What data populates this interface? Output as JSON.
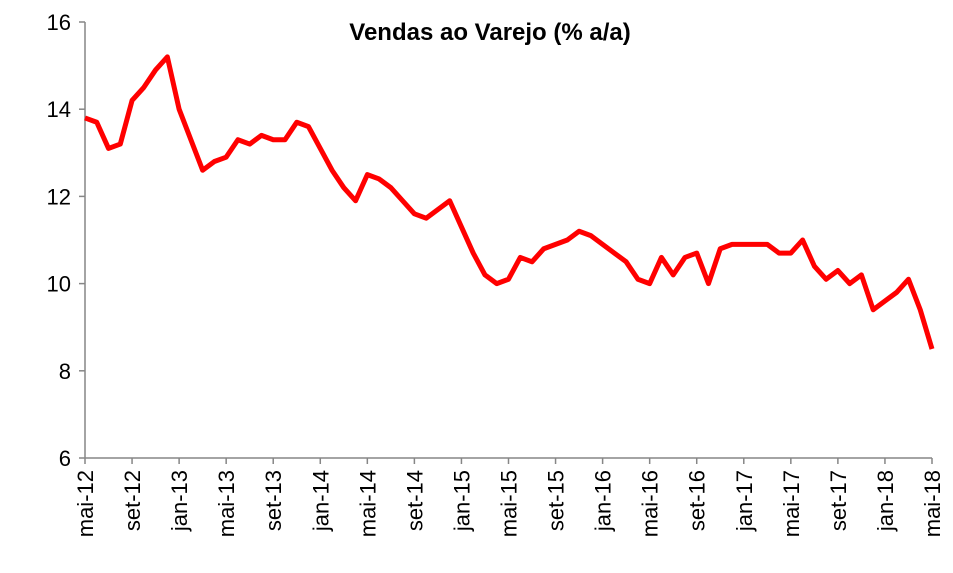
{
  "chart_data": {
    "type": "line",
    "title": "Vendas ao Varejo (% a/a)",
    "categories": [
      "mai-12",
      null,
      null,
      null,
      "set-12",
      null,
      null,
      null,
      "jan-13",
      null,
      null,
      null,
      "mai-13",
      null,
      null,
      null,
      "set-13",
      null,
      null,
      null,
      "jan-14",
      null,
      null,
      null,
      "mai-14",
      null,
      null,
      null,
      "set-14",
      null,
      null,
      null,
      "jan-15",
      null,
      null,
      null,
      "mai-15",
      null,
      null,
      null,
      "set-15",
      null,
      null,
      null,
      "jan-16",
      null,
      null,
      null,
      "mai-16",
      null,
      null,
      null,
      "set-16",
      null,
      null,
      null,
      "jan-17",
      null,
      null,
      null,
      "mai-17",
      null,
      null,
      null,
      "set-17",
      null,
      null,
      null,
      "jan-18",
      null,
      null,
      null,
      "mai-18"
    ],
    "series": [
      {
        "name": "Vendas ao Varejo",
        "color": "#ff0000",
        "values": [
          13.8,
          13.7,
          13.1,
          13.2,
          14.2,
          14.5,
          14.9,
          15.2,
          14.0,
          13.3,
          12.6,
          12.8,
          12.9,
          13.3,
          13.2,
          13.4,
          13.3,
          13.3,
          13.7,
          13.6,
          13.1,
          12.6,
          12.2,
          11.9,
          12.5,
          12.4,
          12.2,
          11.9,
          11.6,
          11.5,
          11.7,
          11.9,
          11.3,
          10.7,
          10.2,
          10.0,
          10.1,
          10.6,
          10.5,
          10.8,
          10.9,
          11.0,
          11.2,
          11.1,
          10.9,
          10.7,
          10.5,
          10.1,
          10.0,
          10.6,
          10.2,
          10.6,
          10.7,
          10.0,
          10.8,
          10.9,
          10.9,
          10.9,
          10.9,
          10.7,
          10.7,
          11.0,
          10.4,
          10.1,
          10.3,
          10.0,
          10.2,
          9.4,
          9.6,
          9.8,
          10.1,
          9.4,
          8.5
        ]
      }
    ],
    "ylim": [
      6,
      16
    ],
    "yticks": [
      6,
      8,
      10,
      12,
      14,
      16
    ],
    "grid": false
  }
}
